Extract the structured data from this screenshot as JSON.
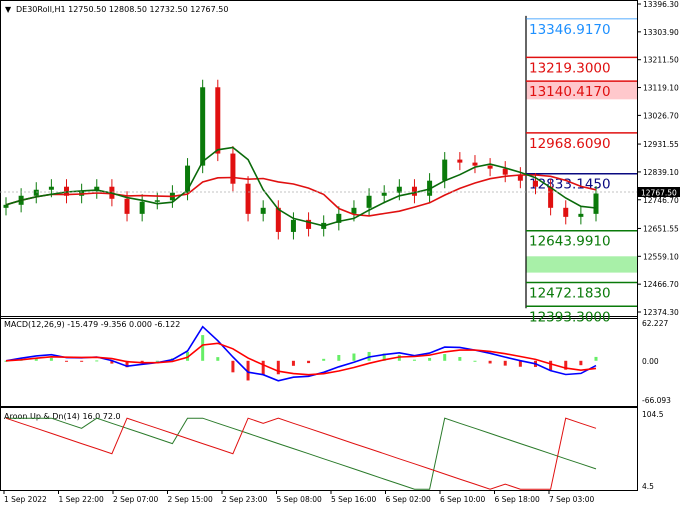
{
  "main": {
    "header": "DE30Roll,H1  12750.50 12808.50 12732.50 12767.50",
    "price_ticks": [
      "13396.30",
      "13303.90",
      "13211.50",
      "13119.10",
      "13026.70",
      "12931.55",
      "12839.10",
      "12746.70",
      "12651.55",
      "12559.10",
      "12466.70",
      "12374.30"
    ],
    "current_price": "12767.50",
    "levels": [
      {
        "label": "13346.9170",
        "value": 13346.917,
        "color": "#1e90ff"
      },
      {
        "label": "13219.3000",
        "value": 13219.3,
        "color": "#e01010"
      },
      {
        "label": "13140.4170",
        "value": 13140.417,
        "color": "#e01010"
      },
      {
        "label": "12968.6090",
        "value": 12968.609,
        "color": "#e01010"
      },
      {
        "label": "12833.1450",
        "value": 12833.145,
        "color": "#0a0a80"
      },
      {
        "label": "12643.9910",
        "value": 12643.991,
        "color": "#0a7a0a"
      },
      {
        "label": "12472.1830",
        "value": 12472.183,
        "color": "#0a7a0a"
      },
      {
        "label": "12393.3000",
        "value": 12393.3,
        "color": "#0a7a0a"
      }
    ],
    "zones": [
      {
        "from": 13140.417,
        "to": 13080.0,
        "color": "#ffc8cc"
      },
      {
        "from": 12559.1,
        "to": 12505.0,
        "color": "#a8f0a8"
      }
    ]
  },
  "macd": {
    "header": "MACD(12,26,9) -15.479 -9.356 0.000 -6.122",
    "ticks": [
      "62.227",
      "0.00",
      "-66.093"
    ],
    "range": [
      -66.093,
      62.227
    ]
  },
  "aroon": {
    "header": "Aroon Up & Dn(14) 16.0 72.0",
    "ticks": [
      "104.5",
      "4.5"
    ],
    "range": [
      4.5,
      104.5
    ]
  },
  "time_axis": [
    "1 Sep 2022",
    "1 Sep 22:00",
    "2 Sep 07:00",
    "2 Sep 15:00",
    "2 Sep 23:00",
    "5 Sep 08:00",
    "5 Sep 16:00",
    "6 Sep 02:00",
    "6 Sep 10:00",
    "6 Sep 18:00",
    "7 Sep 03:00"
  ],
  "colors": {
    "bull": "#0a7a0a",
    "bear": "#e01010",
    "ma_fast": "#0a6a0a",
    "ma_slow": "#e01010",
    "macd_line": "#0000ff",
    "signal_line": "#ff0000",
    "hist_pos": "#66ee66",
    "hist_neg": "#ee2020",
    "aroon_up": "#2a7a2a",
    "aroon_dn": "#e01010"
  },
  "chart_data": {
    "type": "candlestick",
    "x": [
      "1 Sep 2022",
      "1 Sep 22:00",
      "2 Sep 07:00",
      "2 Sep 15:00",
      "2 Sep 23:00",
      "5 Sep 08:00",
      "5 Sep 16:00",
      "6 Sep 02:00",
      "6 Sep 10:00",
      "6 Sep 18:00",
      "7 Sep 03:00"
    ],
    "closes": [
      12730,
      12760,
      12780,
      12790,
      12760,
      12775,
      12790,
      12750,
      12700,
      12740,
      12745,
      12770,
      12860,
      13120,
      12900,
      12800,
      12700,
      12720,
      12640,
      12680,
      12650,
      12670,
      12700,
      12720,
      12760,
      12770,
      12790,
      12760,
      12810,
      12880,
      12870,
      12860,
      12850,
      12830,
      12810,
      12790,
      12720,
      12690,
      12700,
      12767.5
    ],
    "ylim": [
      12374.3,
      13396.3
    ]
  }
}
